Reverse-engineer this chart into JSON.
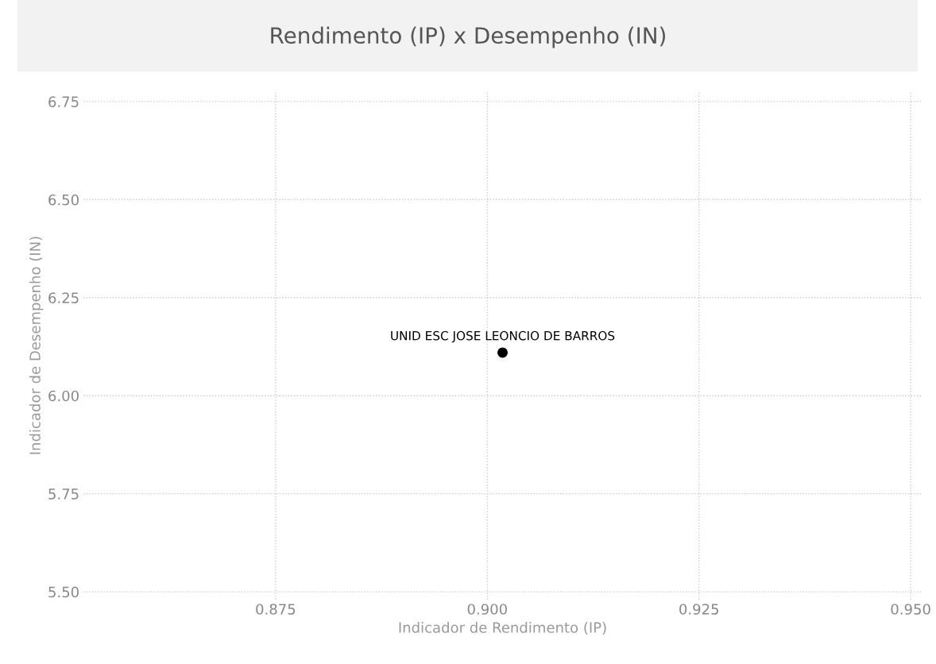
{
  "chart_data": {
    "type": "scatter",
    "title": "Rendimento (IP) x Desempenho (IN)",
    "xlabel": "Indicador de Rendimento (IP)",
    "ylabel": "Indicador de Desempenho (IN)",
    "x": [
      0.9018
    ],
    "series": [
      {
        "color": "#000000",
        "values": [
          6.11
        ]
      }
    ],
    "annotations": [
      {
        "text": "UNID ESC JOSE LEONCIO DE BARROS",
        "x": 0.9018,
        "y": 6.11
      }
    ],
    "xlim": [
      0.8523,
      0.9513
    ],
    "ylim": [
      5.48,
      6.776
    ],
    "xticks": [
      {
        "value": 0.875,
        "label": "0.875"
      },
      {
        "value": 0.9,
        "label": "0.900"
      },
      {
        "value": 0.925,
        "label": "0.925"
      },
      {
        "value": 0.95,
        "label": "0.950"
      }
    ],
    "yticks": [
      {
        "value": 5.5,
        "label": "5.50"
      },
      {
        "value": 5.75,
        "label": "5.75"
      },
      {
        "value": 6.0,
        "label": "6.00"
      },
      {
        "value": 6.25,
        "label": "6.25"
      },
      {
        "value": 6.5,
        "label": "6.50"
      },
      {
        "value": 6.75,
        "label": "6.75"
      }
    ],
    "grid": true,
    "marker": "circle",
    "legend": false
  }
}
